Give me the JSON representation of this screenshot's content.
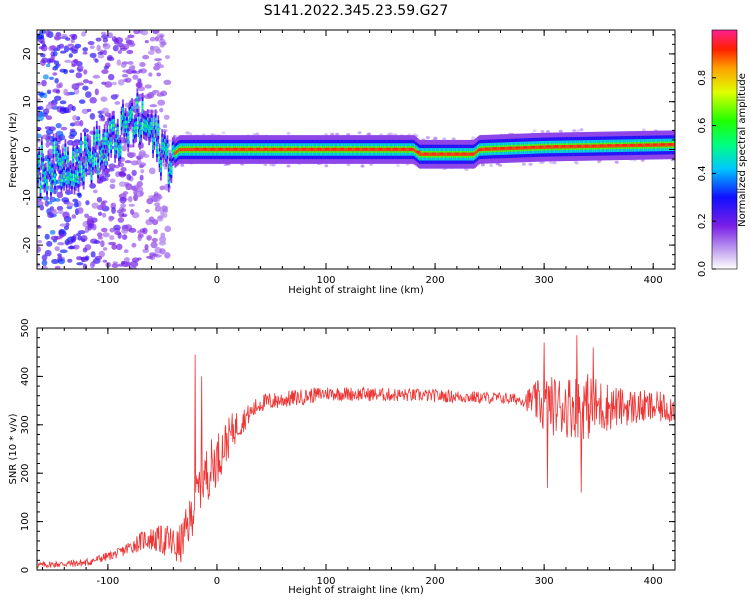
{
  "title": "S141.2022.345.23.59.G27",
  "colors": {
    "signal": "#ff0000",
    "noise": "#8a2be2",
    "snr_line": "#ee3333",
    "axis": "#000000"
  },
  "chart_data": [
    {
      "type": "heatmap",
      "title": "S141.2022.345.23.59.G27",
      "xlabel": "Height of straight line (km)",
      "ylabel": "Frequency (Hz)",
      "xlim": [
        -165,
        420
      ],
      "ylim": [
        -25,
        25
      ],
      "xticks": [
        -100,
        0,
        100,
        200,
        300,
        400
      ],
      "yticks": [
        -20,
        -10,
        0,
        10,
        20
      ],
      "colorbar": {
        "label": "Normalized spectral amplitude",
        "range": [
          0,
          1
        ],
        "ticks": [
          0.0,
          0.2,
          0.4,
          0.6,
          0.8
        ],
        "colormap": "rainbow"
      },
      "ridge": [
        {
          "x": -160,
          "f": -4
        },
        {
          "x": -140,
          "f": -3
        },
        {
          "x": -120,
          "f": -2
        },
        {
          "x": -100,
          "f": 1
        },
        {
          "x": -85,
          "f": 4
        },
        {
          "x": -75,
          "f": 6
        },
        {
          "x": -65,
          "f": 5
        },
        {
          "x": -55,
          "f": 1
        },
        {
          "x": -45,
          "f": -2
        },
        {
          "x": -35,
          "f": 0
        },
        {
          "x": -20,
          "f": 0
        },
        {
          "x": 0,
          "f": 0
        },
        {
          "x": 100,
          "f": 0
        },
        {
          "x": 180,
          "f": 0
        },
        {
          "x": 185,
          "f": -1
        },
        {
          "x": 235,
          "f": -1
        },
        {
          "x": 240,
          "f": 0
        },
        {
          "x": 300,
          "f": 0.5
        },
        {
          "x": 420,
          "f": 1
        }
      ]
    },
    {
      "type": "line",
      "xlabel": "Height of straight line (km)",
      "ylabel": "SNR (10 * v/v)",
      "xlim": [
        -165,
        420
      ],
      "ylim": [
        0,
        500
      ],
      "xticks": [
        -100,
        0,
        100,
        200,
        300,
        400
      ],
      "yticks": [
        0,
        100,
        200,
        300,
        400,
        500
      ],
      "trend": [
        {
          "x": -165,
          "y": 10
        },
        {
          "x": -120,
          "y": 15
        },
        {
          "x": -90,
          "y": 35
        },
        {
          "x": -65,
          "y": 65
        },
        {
          "x": -45,
          "y": 60
        },
        {
          "x": -35,
          "y": 45
        },
        {
          "x": -25,
          "y": 100
        },
        {
          "x": -15,
          "y": 180
        },
        {
          "x": 0,
          "y": 230
        },
        {
          "x": 15,
          "y": 290
        },
        {
          "x": 40,
          "y": 345
        },
        {
          "x": 100,
          "y": 365
        },
        {
          "x": 200,
          "y": 360
        },
        {
          "x": 260,
          "y": 355
        },
        {
          "x": 290,
          "y": 350
        },
        {
          "x": 300,
          "y": 340
        },
        {
          "x": 420,
          "y": 335
        }
      ],
      "noise": [
        {
          "x": -165,
          "a": 6
        },
        {
          "x": -90,
          "a": 10
        },
        {
          "x": -60,
          "a": 25
        },
        {
          "x": -30,
          "a": 45
        },
        {
          "x": -5,
          "a": 60
        },
        {
          "x": 30,
          "a": 20
        },
        {
          "x": 100,
          "a": 15
        },
        {
          "x": 280,
          "a": 12
        },
        {
          "x": 300,
          "a": 60
        },
        {
          "x": 340,
          "a": 70
        },
        {
          "x": 370,
          "a": 40
        },
        {
          "x": 420,
          "a": 30
        }
      ],
      "spikes": [
        {
          "x": -20,
          "y": 445
        },
        {
          "x": -14,
          "y": 400
        },
        {
          "x": 300,
          "y": 470
        },
        {
          "x": 330,
          "y": 485
        },
        {
          "x": 345,
          "y": 460
        },
        {
          "x": 303,
          "y": 170
        },
        {
          "x": 334,
          "y": 160
        }
      ]
    }
  ]
}
